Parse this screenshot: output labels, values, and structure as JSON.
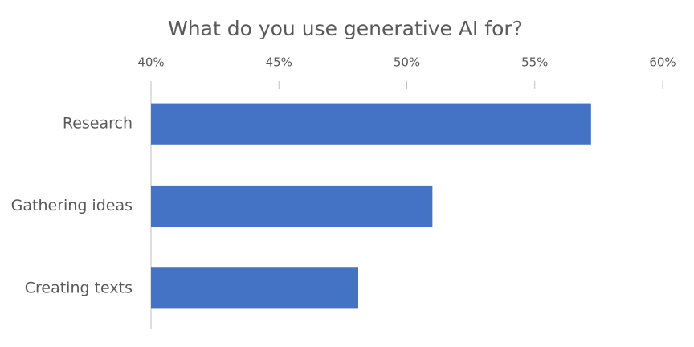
{
  "chart_data": {
    "type": "bar",
    "orientation": "horizontal",
    "title": "What do you use generative AI for?",
    "categories": [
      "Research",
      "Gathering ideas",
      "Creating texts"
    ],
    "values": [
      57.2,
      51.0,
      48.1
    ],
    "color": "#4472c4",
    "xlim": [
      40,
      60
    ],
    "xticks": [
      {
        "value": 40,
        "label": "40%"
      },
      {
        "value": 45,
        "label": "45%"
      },
      {
        "value": 50,
        "label": "50%"
      },
      {
        "value": 55,
        "label": "55%"
      },
      {
        "value": 60,
        "label": "60%"
      }
    ],
    "grid": false
  }
}
